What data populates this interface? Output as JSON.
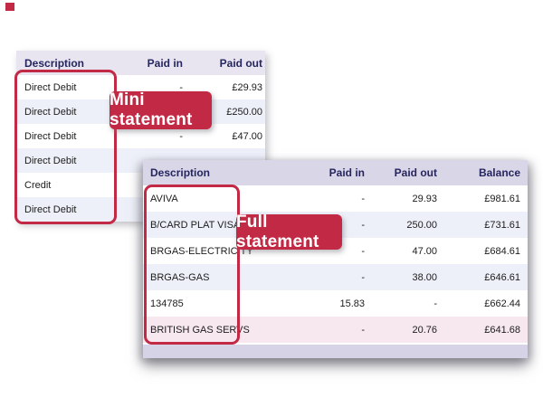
{
  "colors": {
    "accent_red": "#c22945",
    "mini_header_bg": "#e8e5f1",
    "full_header_bg": "#d9d6e8",
    "alt_row_bg": "#eef0f9",
    "pink_row_bg": "#f7e8f0",
    "footer_bar_bg": "#d5d3e5",
    "header_text": "#26265f"
  },
  "mini_statement": {
    "badge_label": "Mini statement",
    "columns": [
      "Description",
      "Paid in",
      "Paid out"
    ],
    "rows": [
      {
        "description": "Direct Debit",
        "paid_in": "-",
        "paid_out": "£29.93"
      },
      {
        "description": "Direct Debit",
        "paid_in": "",
        "paid_out": "£250.00"
      },
      {
        "description": "Direct Debit",
        "paid_in": "-",
        "paid_out": "£47.00"
      },
      {
        "description": "Direct Debit",
        "paid_in": "",
        "paid_out": ""
      },
      {
        "description": "Credit",
        "paid_in": "",
        "paid_out": ""
      },
      {
        "description": "Direct Debit",
        "paid_in": "",
        "paid_out": ""
      }
    ]
  },
  "full_statement": {
    "badge_label": "Full statement",
    "columns": [
      "Description",
      "Paid in",
      "Paid out",
      "Balance"
    ],
    "rows": [
      {
        "description": "AVIVA",
        "paid_in": "-",
        "paid_out": "29.93",
        "balance": "£981.61",
        "highlight": false
      },
      {
        "description": "B/CARD PLAT VISA",
        "paid_in": "-",
        "paid_out": "250.00",
        "balance": "£731.61",
        "highlight": false
      },
      {
        "description": "BRGAS-ELECTRICITY",
        "paid_in": "-",
        "paid_out": "47.00",
        "balance": "£684.61",
        "highlight": false
      },
      {
        "description": "BRGAS-GAS",
        "paid_in": "-",
        "paid_out": "38.00",
        "balance": "£646.61",
        "highlight": false
      },
      {
        "description": "134785",
        "paid_in": "15.83",
        "paid_out": "-",
        "balance": "£662.44",
        "highlight": false
      },
      {
        "description": "BRITISH GAS SERVS",
        "paid_in": "-",
        "paid_out": "20.76",
        "balance": "£641.68",
        "highlight": true
      }
    ]
  }
}
